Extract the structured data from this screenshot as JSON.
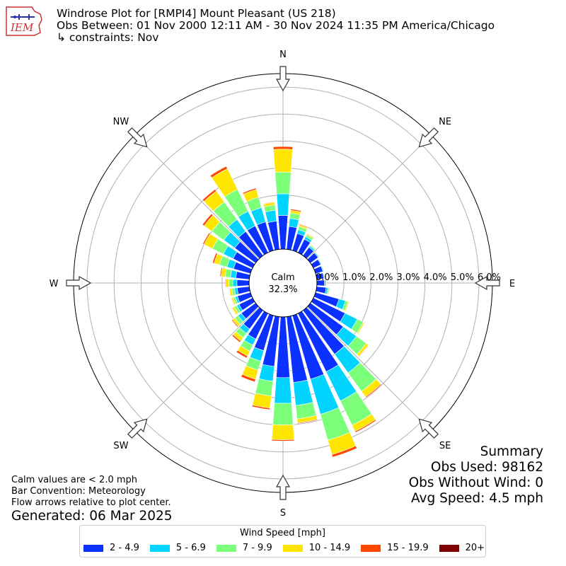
{
  "header": {
    "title": "Windrose Plot for [RMPI4] Mount Pleasant (US 218)",
    "obs_between": "Obs Between: 01 Nov 2000 12:11 AM - 30 Nov 2024 11:35 PM America/Chicago",
    "constraints": "↳ constraints: Nov"
  },
  "logo": {
    "text": "IEM"
  },
  "summary": {
    "title": "Summary",
    "obs_used": "Obs Used: 98162",
    "obs_without_wind": "Obs Without Wind: 0",
    "avg_speed": "Avg Speed: 4.5 mph"
  },
  "notes": {
    "calm": "Calm values are < 2.0 mph",
    "bar_convention": "Bar Convention: Meteorology",
    "flow_arrows": "Flow arrows relative to plot center.",
    "generated": "Generated: 06 Mar 2025"
  },
  "legend": {
    "title": "Wind Speed [mph]",
    "items": [
      {
        "label": "2 - 4.9",
        "color": "#0a31ff"
      },
      {
        "label": "5 - 6.9",
        "color": "#00d4ff"
      },
      {
        "label": "7 - 9.9",
        "color": "#7cff79"
      },
      {
        "label": "10 - 14.9",
        "color": "#ffe600"
      },
      {
        "label": "15 - 19.9",
        "color": "#ff4700"
      },
      {
        "label": "20+",
        "color": "#7f0000"
      }
    ]
  },
  "chart_data": {
    "type": "windrose",
    "calm_label": "Calm",
    "calm_percent": "32.3%",
    "directions": [
      "N",
      "NE",
      "E",
      "SE",
      "S",
      "SW",
      "W",
      "NW"
    ],
    "radial_ticks": [
      "0.0%",
      "1.0%",
      "2.0%",
      "3.0%",
      "4.0%",
      "5.0%",
      "6.0%"
    ],
    "rmax": 6.5,
    "bar_angles_deg": [
      0,
      10,
      20,
      30,
      40,
      50,
      60,
      70,
      80,
      90,
      100,
      110,
      120,
      130,
      140,
      150,
      160,
      170,
      180,
      190,
      200,
      210,
      220,
      230,
      240,
      250,
      260,
      270,
      280,
      290,
      300,
      310,
      320,
      330,
      340,
      350
    ],
    "series": [
      {
        "name": "2 - 4.9",
        "color": "#0a31ff",
        "values": [
          1.25,
          0.85,
          0.65,
          0.55,
          0.38,
          0.35,
          0.3,
          0.28,
          0.26,
          0.28,
          0.35,
          0.9,
          1.3,
          1.5,
          2.0,
          2.4,
          2.45,
          2.45,
          2.25,
          1.85,
          1.35,
          1.05,
          0.85,
          0.65,
          0.55,
          0.5,
          0.45,
          0.45,
          0.5,
          0.65,
          0.8,
          0.95,
          1.1,
          1.1,
          1.1,
          1.05
        ]
      },
      {
        "name": "5 - 6.9",
        "color": "#00d4ff",
        "values": [
          0.8,
          0.3,
          0.15,
          0.1,
          0.06,
          0.04,
          0.03,
          0.03,
          0.03,
          0.05,
          0.07,
          0.25,
          0.5,
          0.6,
          0.85,
          1.2,
          1.35,
          0.85,
          0.95,
          0.55,
          0.4,
          0.25,
          0.2,
          0.15,
          0.1,
          0.08,
          0.1,
          0.15,
          0.2,
          0.25,
          0.4,
          0.5,
          0.55,
          0.6,
          0.55,
          0.4
        ]
      },
      {
        "name": "7 - 9.9",
        "color": "#7cff79",
        "values": [
          0.8,
          0.2,
          0.12,
          0.08,
          0.04,
          0.02,
          0.02,
          0.02,
          0.02,
          0.03,
          0.05,
          0.1,
          0.25,
          0.45,
          0.85,
          1.0,
          1.0,
          0.5,
          0.8,
          0.55,
          0.35,
          0.25,
          0.2,
          0.15,
          0.1,
          0.08,
          0.1,
          0.15,
          0.2,
          0.3,
          0.45,
          0.55,
          0.8,
          0.9,
          0.4,
          0.2
        ]
      },
      {
        "name": "10 - 14.9",
        "color": "#ffe600",
        "values": [
          0.85,
          0.1,
          0.06,
          0.04,
          0.02,
          0.01,
          0.01,
          0.01,
          0.01,
          0.01,
          0.02,
          0.04,
          0.05,
          0.1,
          0.25,
          0.25,
          0.55,
          0.15,
          0.55,
          0.45,
          0.35,
          0.2,
          0.15,
          0.1,
          0.08,
          0.06,
          0.08,
          0.1,
          0.15,
          0.2,
          0.35,
          0.35,
          0.5,
          0.85,
          0.3,
          0.1
        ]
      },
      {
        "name": "15 - 19.9",
        "color": "#ff4700",
        "values": [
          0.1,
          0.05,
          0.03,
          0.02,
          0.01,
          0.0,
          0.0,
          0.0,
          0.0,
          0.0,
          0.0,
          0.01,
          0.01,
          0.02,
          0.04,
          0.05,
          0.1,
          0.03,
          0.05,
          0.06,
          0.1,
          0.08,
          0.06,
          0.04,
          0.02,
          0.02,
          0.02,
          0.03,
          0.04,
          0.06,
          0.05,
          0.08,
          0.08,
          0.1,
          0.05,
          0.02
        ]
      },
      {
        "name": "20+",
        "color": "#7f0000",
        "values": [
          0,
          0,
          0,
          0,
          0,
          0,
          0,
          0,
          0,
          0,
          0,
          0,
          0,
          0,
          0,
          0,
          0,
          0,
          0,
          0,
          0,
          0,
          0,
          0,
          0,
          0,
          0,
          0,
          0,
          0,
          0,
          0,
          0,
          0,
          0,
          0
        ]
      }
    ]
  }
}
